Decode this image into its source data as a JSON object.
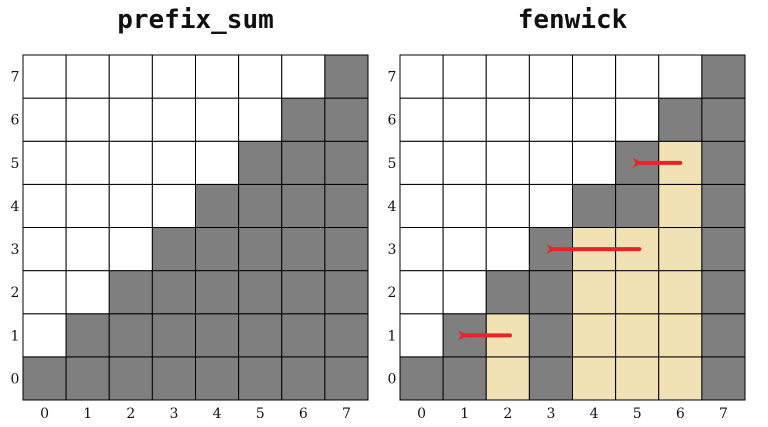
{
  "colors": {
    "background": "#ffffff",
    "filled": "#7f7f7f",
    "highlight": "#f0e2b4",
    "grid": "#000000",
    "arrow": "#e8242a"
  },
  "panels": [
    {
      "key": "prefix",
      "title": "prefix_sum",
      "x_ticks": [
        "0",
        "1",
        "2",
        "3",
        "4",
        "5",
        "6",
        "7"
      ],
      "y_ticks": [
        "0",
        "1",
        "2",
        "3",
        "4",
        "5",
        "6",
        "7"
      ],
      "filled_cells": [
        [
          0,
          0
        ],
        [
          1,
          0
        ],
        [
          2,
          0
        ],
        [
          3,
          0
        ],
        [
          4,
          0
        ],
        [
          5,
          0
        ],
        [
          6,
          0
        ],
        [
          7,
          0
        ],
        [
          1,
          1
        ],
        [
          2,
          1
        ],
        [
          3,
          1
        ],
        [
          4,
          1
        ],
        [
          5,
          1
        ],
        [
          6,
          1
        ],
        [
          7,
          1
        ],
        [
          2,
          2
        ],
        [
          3,
          2
        ],
        [
          4,
          2
        ],
        [
          5,
          2
        ],
        [
          6,
          2
        ],
        [
          7,
          2
        ],
        [
          3,
          3
        ],
        [
          4,
          3
        ],
        [
          5,
          3
        ],
        [
          6,
          3
        ],
        [
          7,
          3
        ],
        [
          4,
          4
        ],
        [
          5,
          4
        ],
        [
          6,
          4
        ],
        [
          7,
          4
        ],
        [
          5,
          5
        ],
        [
          6,
          5
        ],
        [
          7,
          5
        ],
        [
          6,
          6
        ],
        [
          7,
          6
        ],
        [
          7,
          7
        ]
      ],
      "highlight_cells": [],
      "arrows": []
    },
    {
      "key": "fenwick",
      "title": "fenwick",
      "x_ticks": [
        "0",
        "1",
        "2",
        "3",
        "4",
        "5",
        "6",
        "7"
      ],
      "y_ticks": [
        "0",
        "1",
        "2",
        "3",
        "4",
        "5",
        "6",
        "7"
      ],
      "filled_cells": [
        [
          0,
          0
        ],
        [
          1,
          0
        ],
        [
          3,
          0
        ],
        [
          7,
          0
        ],
        [
          1,
          1
        ],
        [
          3,
          1
        ],
        [
          7,
          1
        ],
        [
          2,
          2
        ],
        [
          3,
          2
        ],
        [
          7,
          2
        ],
        [
          3,
          3
        ],
        [
          7,
          3
        ],
        [
          4,
          4
        ],
        [
          5,
          4
        ],
        [
          7,
          4
        ],
        [
          5,
          5
        ],
        [
          7,
          5
        ],
        [
          6,
          6
        ],
        [
          7,
          6
        ],
        [
          7,
          7
        ]
      ],
      "highlight_cells": [
        [
          2,
          0
        ],
        [
          4,
          0
        ],
        [
          5,
          0
        ],
        [
          6,
          0
        ],
        [
          2,
          1
        ],
        [
          4,
          1
        ],
        [
          5,
          1
        ],
        [
          6,
          1
        ],
        [
          4,
          2
        ],
        [
          5,
          2
        ],
        [
          6,
          2
        ],
        [
          4,
          3
        ],
        [
          5,
          3
        ],
        [
          6,
          3
        ],
        [
          6,
          4
        ],
        [
          6,
          5
        ]
      ],
      "arrows": [
        {
          "row": 1,
          "from_col": 2.55,
          "to_col": 1.3
        },
        {
          "row": 3,
          "from_col": 5.55,
          "to_col": 3.35
        },
        {
          "row": 5,
          "from_col": 6.5,
          "to_col": 5.35
        }
      ]
    }
  ]
}
